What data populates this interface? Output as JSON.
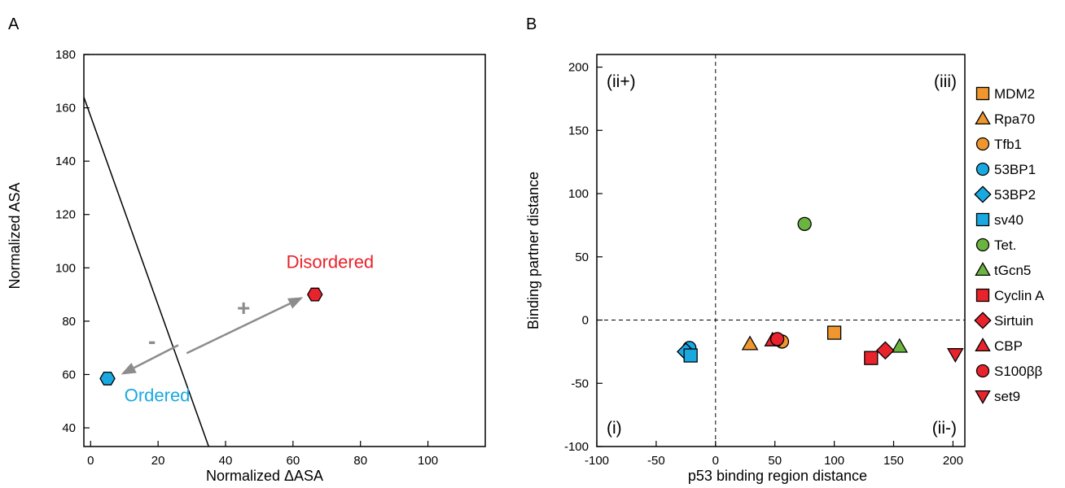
{
  "chart_data": [
    {
      "panel": "A",
      "type": "scatter",
      "xlabel": "Normalized ΔASA",
      "ylabel": "Normalized ASA",
      "xlim": [
        -2,
        117
      ],
      "ylim": [
        33,
        180
      ],
      "xticks": [
        0,
        20,
        40,
        60,
        80,
        100
      ],
      "yticks": [
        40,
        60,
        80,
        100,
        120,
        140,
        160,
        180
      ],
      "grid": false,
      "boundary_line": [
        [
          -2,
          164
        ],
        [
          35,
          33
        ]
      ],
      "points": [
        {
          "name": "Ordered",
          "x": 5,
          "y": 58.5,
          "color": "#1aa8e0",
          "marker": "hexagon"
        },
        {
          "name": "Disordered",
          "x": 66.5,
          "y": 90,
          "color": "#e8232b",
          "marker": "hexagon"
        }
      ],
      "arrows": [
        {
          "label": "-",
          "from": [
            26,
            71
          ],
          "to": [
            9,
            60
          ]
        },
        {
          "label": "+",
          "from": [
            28.5,
            68
          ],
          "to": [
            63,
            89
          ]
        }
      ],
      "annotations": [
        {
          "text": "Disordered",
          "x": 58,
          "y": 100,
          "color": "#e8232b"
        },
        {
          "text": "Ordered",
          "x": 10,
          "y": 50,
          "color": "#1aa8e0"
        }
      ]
    },
    {
      "panel": "B",
      "type": "scatter",
      "xlabel": "p53 binding region distance",
      "ylabel": "Binding partner distance",
      "xlim": [
        -100,
        210
      ],
      "ylim": [
        -100,
        210
      ],
      "xticks": [
        -100,
        -50,
        0,
        50,
        100,
        150,
        200
      ],
      "yticks": [
        -100,
        -50,
        0,
        50,
        100,
        150,
        200
      ],
      "grid": false,
      "reference_lines": {
        "x": 0,
        "y": 0
      },
      "quadrant_labels": [
        "(ii+)",
        "(iii)",
        "(i)",
        "(ii-)"
      ],
      "legend_position": "right",
      "series": [
        {
          "name": "MDM2",
          "marker": "square",
          "color": "#f0962e",
          "points": [
            [
              100,
              -10
            ]
          ]
        },
        {
          "name": "Rpa70",
          "marker": "triangle-up",
          "color": "#f0962e",
          "points": [
            [
              29,
              -19
            ]
          ]
        },
        {
          "name": "Tfb1",
          "marker": "circle",
          "color": "#f0962e",
          "points": [
            [
              56,
              -17
            ]
          ]
        },
        {
          "name": "53BP1",
          "marker": "circle",
          "color": "#1aa8e0",
          "points": [
            [
              -22,
              -22
            ]
          ]
        },
        {
          "name": "53BP2",
          "marker": "diamond",
          "color": "#1aa8e0",
          "points": [
            [
              -25,
              -25
            ]
          ]
        },
        {
          "name": "sv40",
          "marker": "square",
          "color": "#1aa8e0",
          "points": [
            [
              -21,
              -28
            ]
          ]
        },
        {
          "name": "Tet.",
          "marker": "circle",
          "color": "#6ab43f",
          "points": [
            [
              75,
              76
            ]
          ]
        },
        {
          "name": "tGcn5",
          "marker": "triangle-up",
          "color": "#6ab43f",
          "points": [
            [
              155,
              -21
            ]
          ]
        },
        {
          "name": "Cyclin A",
          "marker": "square",
          "color": "#e8232b",
          "points": [
            [
              131,
              -30
            ]
          ]
        },
        {
          "name": "Sirtuin",
          "marker": "diamond",
          "color": "#e8232b",
          "points": [
            [
              143,
              -24
            ]
          ]
        },
        {
          "name": "CBP",
          "marker": "triangle-up",
          "color": "#e8232b",
          "points": [
            [
              48,
              -16
            ]
          ]
        },
        {
          "name": "S100ββ",
          "marker": "circle",
          "color": "#e8232b",
          "points": [
            [
              52,
              -15
            ]
          ]
        },
        {
          "name": "set9",
          "marker": "triangle-down",
          "color": "#e8232b",
          "points": [
            [
              202,
              -27
            ]
          ]
        }
      ]
    }
  ],
  "panel_labels": [
    "A",
    "B"
  ]
}
